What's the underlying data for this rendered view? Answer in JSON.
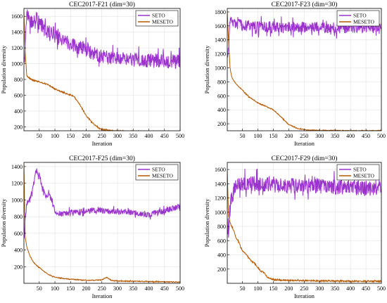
{
  "colors": {
    "SETO": "#9933CC",
    "MESETO": "#B35900",
    "band_SETO": "#E6C8F2",
    "band_MESETO": "#F2D5C8",
    "grid": "#DCDCDC"
  },
  "chart_data": [
    {
      "type": "line",
      "title": "CEC2017-F21 (dim=30)",
      "xlabel": "Iteration",
      "ylabel": "Population diversity",
      "xlim": [
        1,
        500
      ],
      "ylim": [
        150,
        1700
      ],
      "xticks": [
        50,
        100,
        150,
        200,
        250,
        300,
        350,
        400,
        450,
        500
      ],
      "yticks": [
        200,
        400,
        600,
        800,
        1000,
        1200,
        1400,
        1600
      ],
      "grid": true,
      "legend_position": "top-right",
      "series": [
        {
          "name": "SETO",
          "x": [
            1,
            5,
            10,
            20,
            30,
            40,
            50,
            60,
            70,
            80,
            100,
            120,
            150,
            180,
            200,
            230,
            260,
            300,
            350,
            400,
            450,
            500
          ],
          "y": [
            1000,
            1200,
            1650,
            1550,
            1520,
            1600,
            1500,
            1480,
            1420,
            1400,
            1380,
            1320,
            1250,
            1200,
            1170,
            1120,
            1080,
            1060,
            1050,
            1040,
            1030,
            1030
          ],
          "noise": 90
        },
        {
          "name": "MESETO",
          "x": [
            1,
            5,
            10,
            20,
            30,
            50,
            80,
            100,
            130,
            160,
            180,
            200,
            220,
            240,
            260,
            300,
            350,
            400,
            450,
            500
          ],
          "y": [
            1650,
            1150,
            850,
            810,
            790,
            770,
            730,
            680,
            630,
            590,
            480,
            340,
            250,
            180,
            160,
            145,
            140,
            135,
            130,
            130
          ],
          "noise": 8
        }
      ]
    },
    {
      "type": "line",
      "title": "CEC2017-F23 (dim=30)",
      "xlabel": "Iteration",
      "ylabel": "Population diversity",
      "xlim": [
        1,
        500
      ],
      "ylim": [
        100,
        1850
      ],
      "xticks": [
        50,
        100,
        150,
        200,
        250,
        300,
        350,
        400,
        450,
        500
      ],
      "yticks": [
        200,
        400,
        600,
        800,
        1000,
        1200,
        1400,
        1600,
        1800
      ],
      "grid": true,
      "legend_position": "top-right",
      "series": [
        {
          "name": "SETO",
          "x": [
            1,
            5,
            10,
            20,
            40,
            60,
            100,
            150,
            200,
            250,
            300,
            350,
            400,
            450,
            500
          ],
          "y": [
            1100,
            1300,
            1700,
            1640,
            1620,
            1600,
            1590,
            1590,
            1580,
            1580,
            1580,
            1570,
            1580,
            1570,
            1580
          ],
          "noise": 80
        },
        {
          "name": "MESETO",
          "x": [
            1,
            5,
            10,
            15,
            20,
            30,
            50,
            70,
            100,
            130,
            150,
            170,
            200,
            230,
            260,
            300,
            400,
            500
          ],
          "y": [
            1800,
            1400,
            1000,
            880,
            830,
            770,
            680,
            590,
            500,
            440,
            400,
            320,
            190,
            130,
            110,
            105,
            100,
            100
          ],
          "noise": 6
        }
      ]
    },
    {
      "type": "line",
      "title": "CEC2017-F25 (dim=30)",
      "xlabel": "Iteration",
      "ylabel": "Population diversity",
      "xlim": [
        1,
        500
      ],
      "ylim": [
        0,
        1450
      ],
      "xticks": [
        50,
        100,
        150,
        200,
        250,
        300,
        350,
        400,
        450,
        500
      ],
      "yticks": [
        200,
        400,
        600,
        800,
        1000,
        1200,
        1400
      ],
      "grid": true,
      "legend_position": "top-right",
      "series": [
        {
          "name": "SETO",
          "x": [
            1,
            5,
            10,
            20,
            30,
            40,
            50,
            60,
            70,
            80,
            90,
            100,
            120,
            150,
            200,
            250,
            300,
            350,
            400,
            450,
            480,
            500
          ],
          "y": [
            500,
            750,
            950,
            1000,
            1150,
            1350,
            1300,
            1150,
            1050,
            1060,
            1000,
            860,
            830,
            850,
            870,
            870,
            860,
            850,
            820,
            870,
            900,
            930
          ],
          "noise": 35
        },
        {
          "name": "MESETO",
          "x": [
            1,
            5,
            10,
            20,
            30,
            40,
            50,
            60,
            80,
            100,
            120,
            150,
            200,
            250,
            265,
            280,
            300,
            350,
            400,
            450,
            500
          ],
          "y": [
            1420,
            560,
            440,
            330,
            260,
            220,
            190,
            160,
            100,
            75,
            60,
            50,
            35,
            40,
            75,
            35,
            28,
            25,
            22,
            18,
            15
          ],
          "noise": 5
        }
      ]
    },
    {
      "type": "line",
      "title": "CEC2017-F29 (dim=30)",
      "xlabel": "Iteration",
      "ylabel": "Population diversity",
      "xlim": [
        1,
        500
      ],
      "ylim": [
        0,
        1700
      ],
      "xticks": [
        50,
        100,
        150,
        200,
        250,
        300,
        350,
        400,
        450,
        500
      ],
      "yticks": [
        200,
        400,
        600,
        800,
        1000,
        1200,
        1400,
        1600
      ],
      "grid": true,
      "legend_position": "top-right",
      "series": [
        {
          "name": "SETO",
          "x": [
            1,
            5,
            10,
            20,
            30,
            50,
            100,
            150,
            200,
            250,
            300,
            350,
            400,
            450,
            500
          ],
          "y": [
            800,
            700,
            1100,
            1300,
            1380,
            1400,
            1400,
            1380,
            1370,
            1380,
            1370,
            1360,
            1350,
            1340,
            1340
          ],
          "noise": 110
        },
        {
          "name": "MESETO",
          "x": [
            1,
            5,
            10,
            20,
            30,
            40,
            50,
            60,
            70,
            80,
            90,
            100,
            110,
            120,
            130,
            150,
            200,
            300,
            400,
            500
          ],
          "y": [
            1600,
            950,
            850,
            760,
            640,
            560,
            460,
            420,
            360,
            310,
            280,
            220,
            170,
            150,
            90,
            50,
            40,
            35,
            30,
            30
          ],
          "noise": 10
        }
      ]
    }
  ]
}
